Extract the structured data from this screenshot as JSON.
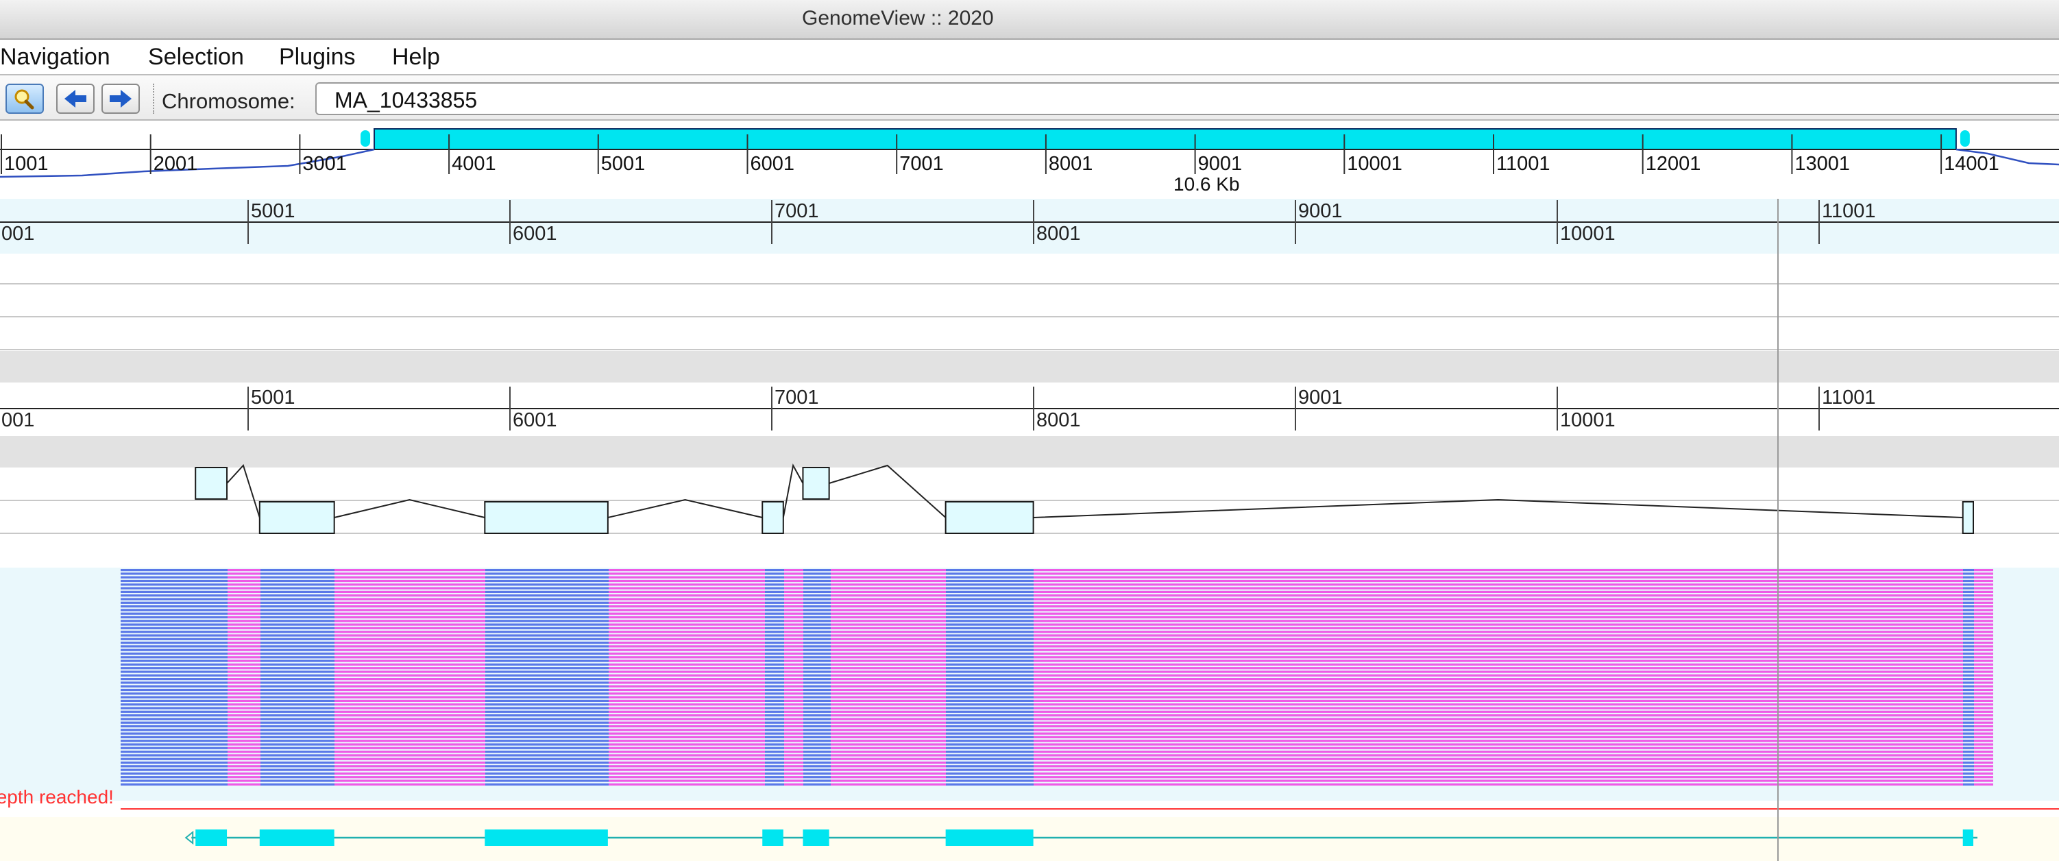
{
  "window": {
    "title": "GenomeView :: 2020"
  },
  "menubar": {
    "items": [
      {
        "label": "Navigation"
      },
      {
        "label": "Selection"
      },
      {
        "label": "Plugins"
      },
      {
        "label": "Help"
      }
    ]
  },
  "toolbar": {
    "buttons": [
      {
        "icon": "magnifier-icon"
      },
      {
        "icon": "arrow-left-icon"
      },
      {
        "icon": "arrow-right-icon"
      }
    ],
    "chromosome_label": "Chromosome:",
    "chromosome_value": "MA_10433855"
  },
  "overview": {
    "tick_labels": [
      "1001",
      "2001",
      "3001",
      "4001",
      "5001",
      "6001",
      "7001",
      "8001",
      "9001",
      "10001",
      "11001",
      "12001",
      "13001",
      "14001"
    ],
    "selection_size_label": "10.6 Kb",
    "selection_range": [
      3500,
      14101
    ]
  },
  "ruler_top": {
    "labels": [
      {
        "text": "001",
        "pos": 4001,
        "row": "low"
      },
      {
        "text": "5001",
        "pos": 5001,
        "row": "high"
      },
      {
        "text": "6001",
        "pos": 6001,
        "row": "low"
      },
      {
        "text": "7001",
        "pos": 7001,
        "row": "high"
      },
      {
        "text": "8001",
        "pos": 8001,
        "row": "low"
      },
      {
        "text": "9001",
        "pos": 9001,
        "row": "high"
      },
      {
        "text": "10001",
        "pos": 10001,
        "row": "low"
      },
      {
        "text": "11001",
        "pos": 11001,
        "row": "high"
      }
    ]
  },
  "ruler_bottom": {
    "labels": [
      {
        "text": "001",
        "pos": 4001,
        "row": "low"
      },
      {
        "text": "5001",
        "pos": 5001,
        "row": "high"
      },
      {
        "text": "6001",
        "pos": 6001,
        "row": "low"
      },
      {
        "text": "7001",
        "pos": 7001,
        "row": "high"
      },
      {
        "text": "8001",
        "pos": 8001,
        "row": "low"
      },
      {
        "text": "9001",
        "pos": 9001,
        "row": "high"
      },
      {
        "text": "10001",
        "pos": 10001,
        "row": "low"
      },
      {
        "text": "11001",
        "pos": 11001,
        "row": "high"
      }
    ]
  },
  "gene_model": {
    "exons": [
      [
        4800,
        4920
      ],
      [
        5045,
        5330
      ],
      [
        5905,
        6375
      ],
      [
        6965,
        7045
      ],
      [
        7120,
        7220
      ],
      [
        7665,
        8000
      ],
      [
        11550,
        11590
      ]
    ],
    "exon_rows": [
      "upper",
      "lower",
      "lower",
      "lower",
      "upper",
      "lower",
      "lower"
    ]
  },
  "reads": {
    "max_depth_label": "Maximum depth reached!",
    "read_rows": 60
  },
  "colors": {
    "accent_cyan": "#00e5f0",
    "read_blue": "#5a78e8",
    "read_pink": "#ee5ae6",
    "light_band": "#eaf8fc",
    "gray_band": "#e2e2e2",
    "exon_fill": "#e0fbff",
    "depth_warning": "#ff3333"
  }
}
